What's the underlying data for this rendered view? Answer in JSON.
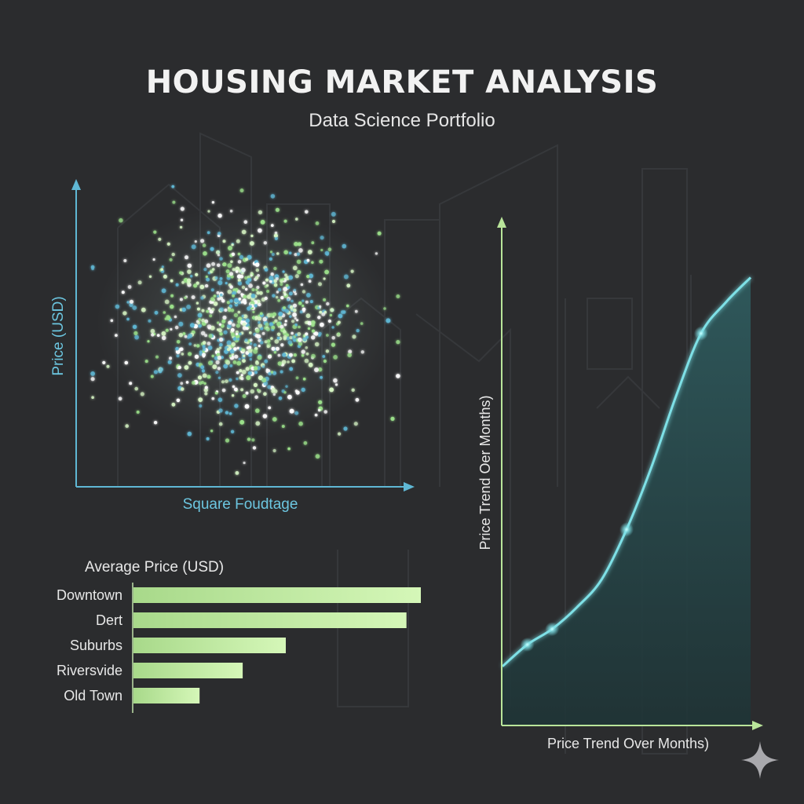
{
  "page": {
    "title": "HOUSING MARKET ANALYSIS",
    "subtitle": "Data Science Portfolio"
  },
  "colors": {
    "background": "#2b2c2e",
    "axis_scatter": "#5fb7d4",
    "bars": "#cdf2ad",
    "line": "#7ee0e6",
    "area": "#2a4e52",
    "axis_line_chart": "#b9e59a"
  },
  "icons": {
    "corner": "sparkle-icon"
  },
  "chart_data": [
    {
      "type": "scatter",
      "title": "",
      "xlabel": "Square Foudtage",
      "ylabel": "Price (USD)",
      "xlim": [
        0,
        100
      ],
      "ylim": [
        0,
        100
      ],
      "grid": false,
      "point_count": 900,
      "center": [
        50,
        52
      ],
      "spread": [
        17,
        16
      ],
      "point_colors": [
        "#d6f5c4",
        "#9be08a",
        "#5fb7d4",
        "#ffffff"
      ]
    },
    {
      "type": "bar",
      "orientation": "horizontal",
      "title": "Average Price (USD)",
      "categories": [
        "Downtown",
        "Dert",
        "Suburbs",
        "Riversvide",
        "Old Town"
      ],
      "values": [
        100,
        95,
        53,
        38,
        23
      ],
      "xlim": [
        0,
        100
      ]
    },
    {
      "type": "area",
      "title": "",
      "xlabel": "Price Trend Over Months)",
      "ylabel": "Price Trend Oer Months)",
      "x": [
        0,
        1,
        2,
        3,
        4,
        5,
        6,
        7,
        8,
        9,
        10
      ],
      "values": [
        19,
        26,
        31,
        38,
        47,
        63,
        83,
        106,
        126,
        136,
        144
      ],
      "xlim": [
        0,
        10
      ],
      "ylim": [
        0,
        160
      ],
      "highlighted_x": [
        1,
        2,
        5,
        8
      ]
    }
  ]
}
